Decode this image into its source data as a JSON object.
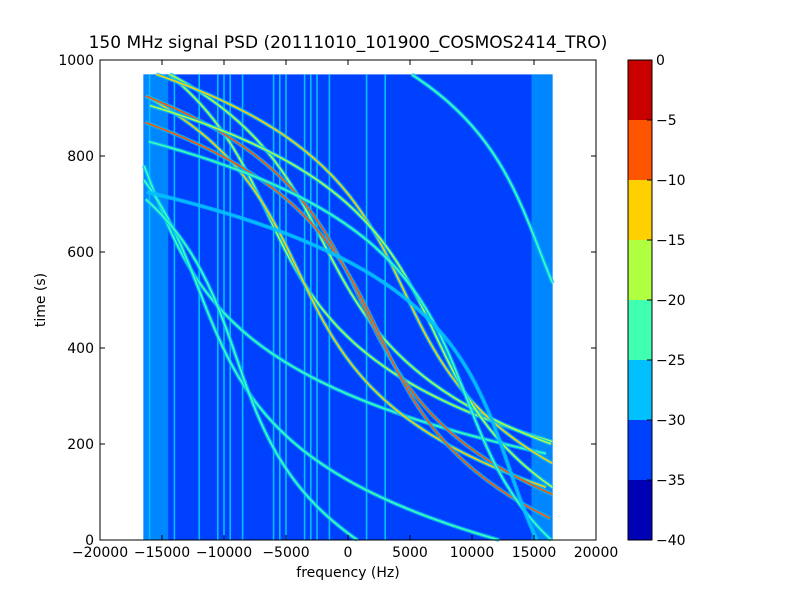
{
  "chart_data": {
    "type": "heatmap",
    "title": "150 MHz signal PSD (20111010_101900_COSMOS2414_TRO)",
    "xlabel": "frequency (Hz)",
    "ylabel": "time (s)",
    "xlim": [
      -20000,
      20000
    ],
    "ylim": [
      0,
      1000
    ],
    "xticks": [
      -20000,
      -15000,
      -10000,
      -5000,
      0,
      5000,
      10000,
      15000,
      20000
    ],
    "yticks": [
      0,
      200,
      400,
      600,
      800,
      1000
    ],
    "xtick_labels": [
      "−20000",
      "−15000",
      "−10000",
      "−5000",
      "0",
      "5000",
      "10000",
      "15000",
      "20000"
    ],
    "ytick_labels": [
      "0",
      "200",
      "400",
      "600",
      "800",
      "1000"
    ],
    "data_extent": {
      "x": [
        -16500,
        16500
      ],
      "y": [
        0,
        970
      ]
    },
    "background_level": -32,
    "colorbar": {
      "levels": [
        -40,
        -35,
        -30,
        -25,
        -20,
        -15,
        -10,
        -5,
        0
      ],
      "tick_labels": [
        "−40",
        "−35",
        "−30",
        "−25",
        "−20",
        "−15",
        "−10",
        "−5",
        "0"
      ],
      "colors": [
        "#0000b5",
        "#0040ff",
        "#00c0ff",
        "#40ffb0",
        "#b0ff40",
        "#ffd000",
        "#ff5500",
        "#c80000"
      ]
    },
    "vertical_lines_hz": [
      -16000,
      -14000,
      -12000,
      -10500,
      -10000,
      -9500,
      -8500,
      -6000,
      -5500,
      -5000,
      -3500,
      -3000,
      -2500,
      -1500,
      1500,
      3000
    ],
    "tracks": [
      {
        "f0": -16000,
        "t0": 750,
        "slope": 45,
        "level": -22
      },
      {
        "f0": -12000,
        "t0": 520,
        "slope": 45,
        "level": -25
      },
      {
        "f0": -9000,
        "t0": 380,
        "slope": 40,
        "level": -25
      },
      {
        "f0": -6500,
        "t0": 680,
        "slope": 55,
        "level": -20
      },
      {
        "f0": -4000,
        "t0": 560,
        "slope": 55,
        "level": -12
      },
      {
        "f0": -2000,
        "t0": 620,
        "slope": 60,
        "level": -18
      },
      {
        "f0": 1000,
        "t0": 500,
        "slope": 55,
        "level": -8
      },
      {
        "f0": 2500,
        "t0": 430,
        "slope": 55,
        "level": -10
      },
      {
        "f0": 4500,
        "t0": 520,
        "slope": 55,
        "level": -15
      },
      {
        "f0": 7000,
        "t0": 430,
        "slope": 55,
        "level": -20
      },
      {
        "f0": 9500,
        "t0": 300,
        "slope": 45,
        "level": -25
      },
      {
        "f0": 13000,
        "t0": 150,
        "slope": 40,
        "level": -28
      },
      {
        "f0": 15500,
        "t0": 600,
        "slope": 45,
        "level": -22
      }
    ]
  }
}
